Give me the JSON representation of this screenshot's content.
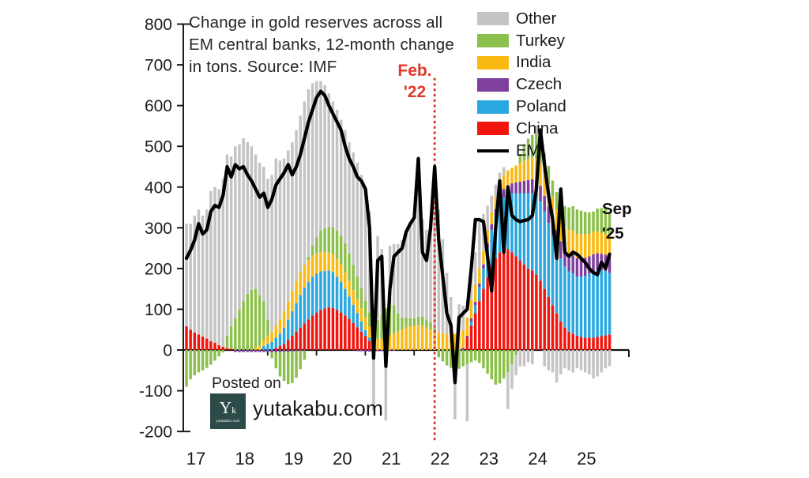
{
  "title": "Change in gold reserves across all EM central banks, 12-month change in tons. Source: IMF",
  "annotations": {
    "event_line1": "Feb.",
    "event_line2": "'22",
    "end_line1": "Sep",
    "end_line2": "'25"
  },
  "watermark": {
    "posted_on": "Posted on",
    "site": "yutakabu.com",
    "logo_monogram_large": "Y",
    "logo_monogram_small": "k",
    "logo_caption": "yutakabu.com"
  },
  "colors": {
    "china": "#f2150d",
    "poland": "#2aa7e0",
    "czech": "#7e3f9d",
    "india": "#fbba12",
    "turkey": "#8cc04c",
    "other": "#c4c4c4",
    "em_line": "#000000",
    "event_red": "#e0392d",
    "axis": "#1b1b1b",
    "logo_teal": "#2c4a47"
  },
  "chart_data": {
    "type": "bar",
    "subtype": "monthly stacked bars with EM total line overlay",
    "x_start": "2017-01",
    "x_end": "2025-09",
    "x_tick_labels": [
      "17",
      "18",
      "19",
      "20",
      "21",
      "22",
      "23",
      "24",
      "25"
    ],
    "ylim": [
      -200,
      800
    ],
    "ytick_step": 100,
    "grid": false,
    "legend_position": "top-right",
    "legend": [
      {
        "label": "Other",
        "color": "#c4c4c4",
        "swatch": "rect"
      },
      {
        "label": "Turkey",
        "color": "#8cc04c",
        "swatch": "rect"
      },
      {
        "label": "India",
        "color": "#fbba12",
        "swatch": "rect"
      },
      {
        "label": "Czech",
        "color": "#7e3f9d",
        "swatch": "rect"
      },
      {
        "label": "Poland",
        "color": "#2aa7e0",
        "swatch": "rect"
      },
      {
        "label": "China",
        "color": "#f2150d",
        "swatch": "rect"
      },
      {
        "label": "EM",
        "color": "#000000",
        "swatch": "line"
      }
    ],
    "event_line": {
      "label": "Feb. '22",
      "x_month_index": 61
    },
    "series": [
      {
        "name": "China",
        "color": "#f2150d",
        "values": [
          58,
          50,
          43,
          38,
          33,
          28,
          22,
          18,
          12,
          8,
          5,
          3,
          0,
          0,
          0,
          0,
          0,
          0,
          0,
          0,
          0,
          0,
          5,
          10,
          15,
          25,
          35,
          45,
          55,
          65,
          75,
          85,
          92,
          98,
          102,
          105,
          103,
          98,
          92,
          85,
          76,
          66,
          56,
          45,
          34,
          22,
          10,
          0,
          0,
          0,
          0,
          0,
          0,
          0,
          0,
          0,
          0,
          0,
          0,
          0,
          0,
          0,
          0,
          0,
          0,
          0,
          0,
          0,
          0,
          30,
          60,
          90,
          120,
          150,
          180,
          205,
          225,
          240,
          250,
          248,
          240,
          230,
          220,
          210,
          200,
          195,
          185,
          170,
          150,
          130,
          110,
          90,
          70,
          55,
          45,
          40,
          35,
          32,
          30,
          30,
          30,
          32,
          34,
          36,
          38
        ]
      },
      {
        "name": "Poland",
        "color": "#2aa7e0",
        "values": [
          0,
          0,
          0,
          0,
          0,
          0,
          0,
          0,
          0,
          0,
          0,
          0,
          0,
          0,
          0,
          0,
          0,
          0,
          0,
          10,
          15,
          20,
          25,
          30,
          40,
          50,
          60,
          70,
          80,
          88,
          92,
          95,
          95,
          95,
          92,
          90,
          88,
          82,
          75,
          65,
          55,
          45,
          35,
          25,
          15,
          8,
          0,
          0,
          0,
          0,
          0,
          0,
          0,
          0,
          0,
          0,
          0,
          0,
          0,
          0,
          0,
          0,
          0,
          0,
          0,
          0,
          0,
          0,
          0,
          0,
          10,
          20,
          35,
          50,
          70,
          90,
          105,
          115,
          125,
          135,
          145,
          155,
          165,
          175,
          185,
          190,
          195,
          195,
          190,
          182,
          172,
          162,
          155,
          150,
          148,
          148,
          145,
          148,
          152,
          158,
          163,
          165,
          162,
          158,
          152
        ]
      },
      {
        "name": "Czech",
        "color": "#7e3f9d",
        "values": [
          0,
          0,
          0,
          0,
          0,
          0,
          0,
          0,
          0,
          0,
          0,
          0,
          -5,
          -5,
          -5,
          -5,
          -5,
          -5,
          -5,
          -5,
          -5,
          -5,
          -5,
          -5,
          -4,
          -4,
          -3,
          -3,
          -2,
          -2,
          0,
          0,
          0,
          0,
          0,
          0,
          0,
          0,
          0,
          0,
          0,
          0,
          -3,
          -3,
          -4,
          -4,
          -4,
          -3,
          -3,
          -3,
          -2,
          -2,
          0,
          0,
          0,
          0,
          0,
          0,
          0,
          0,
          0,
          0,
          0,
          0,
          0,
          0,
          0,
          0,
          5,
          5,
          8,
          8,
          8,
          10,
          12,
          14,
          16,
          18,
          20,
          22,
          24,
          26,
          28,
          30,
          32,
          34,
          36,
          38,
          38,
          40,
          40,
          42,
          42,
          44,
          44,
          45,
          45,
          44,
          44,
          42,
          42,
          41,
          40,
          40,
          40
        ]
      },
      {
        "name": "India",
        "color": "#fbba12",
        "values": [
          0,
          0,
          0,
          0,
          0,
          0,
          0,
          0,
          0,
          0,
          0,
          0,
          0,
          0,
          0,
          0,
          0,
          5,
          10,
          15,
          20,
          25,
          30,
          35,
          40,
          45,
          50,
          54,
          56,
          56,
          54,
          52,
          50,
          48,
          46,
          45,
          44,
          43,
          42,
          40,
          38,
          36,
          34,
          32,
          30,
          28,
          27,
          26,
          28,
          32,
          36,
          40,
          45,
          50,
          55,
          58,
          60,
          62,
          60,
          55,
          50,
          46,
          44,
          42,
          40,
          40,
          40,
          42,
          44,
          45,
          44,
          42,
          38,
          34,
          32,
          30,
          30,
          32,
          34,
          36,
          38,
          42,
          46,
          50,
          52,
          54,
          55,
          56,
          56,
          55,
          54,
          52,
          52,
          54,
          58,
          60,
          60,
          60,
          58,
          56,
          55,
          54,
          52,
          51,
          50
        ]
      },
      {
        "name": "Turkey",
        "color": "#8cc04c",
        "values": [
          -90,
          -72,
          -62,
          -55,
          -50,
          -44,
          -36,
          -26,
          -16,
          -6,
          30,
          55,
          78,
          98,
          120,
          138,
          148,
          145,
          125,
          95,
          40,
          -15,
          -40,
          -60,
          -72,
          -80,
          -78,
          -65,
          -45,
          -22,
          8,
          25,
          40,
          52,
          58,
          62,
          66,
          70,
          72,
          72,
          68,
          62,
          56,
          50,
          42,
          34,
          40,
          48,
          60,
          70,
          90,
          70,
          45,
          30,
          25,
          20,
          18,
          20,
          22,
          20,
          18,
          10,
          -18,
          -28,
          -38,
          -44,
          -50,
          -46,
          -40,
          -35,
          -30,
          -26,
          -32,
          -45,
          -58,
          -72,
          -85,
          -82,
          -70,
          -55,
          -35,
          -12,
          22,
          40,
          50,
          55,
          60,
          56,
          50,
          45,
          40,
          42,
          46,
          50,
          55,
          60,
          60,
          58,
          55,
          52,
          50,
          55,
          60,
          62,
          60
        ]
      },
      {
        "name": "Other",
        "color": "#c4c4c4",
        "values": [
          252,
          260,
          287,
          307,
          297,
          317,
          368,
          382,
          383,
          412,
          445,
          417,
          422,
          407,
          400,
          372,
          352,
          330,
          325,
          330,
          345,
          385,
          410,
          390,
          375,
          370,
          365,
          371,
          384,
          401,
          411,
          398,
          383,
          367,
          352,
          328,
          309,
          297,
          284,
          278,
          273,
          276,
          279,
          278,
          269,
          248,
          -145,
          206,
          160,
          -170,
          130,
          150,
          170,
          190,
          210,
          230,
          240,
          380,
          240,
          220,
          230,
          390,
          300,
          230,
          150,
          90,
          -120,
          70,
          60,
          -140,
          60,
          80,
          120,
          90,
          60,
          40,
          30,
          30,
          20,
          -90,
          -60,
          -50,
          -40,
          -40,
          -30,
          -35,
          20,
          30,
          -40,
          -50,
          -55,
          -80,
          -60,
          -45,
          -50,
          -55,
          -45,
          -50,
          -55,
          -60,
          -70,
          -65,
          -55,
          -45,
          -40
        ]
      }
    ],
    "line": {
      "name": "EM",
      "color": "#000000",
      "values": [
        225,
        245,
        270,
        310,
        285,
        295,
        340,
        355,
        350,
        380,
        450,
        425,
        455,
        445,
        450,
        430,
        415,
        395,
        375,
        385,
        350,
        370,
        405,
        420,
        435,
        455,
        430,
        450,
        480,
        520,
        560,
        590,
        620,
        635,
        625,
        600,
        580,
        560,
        540,
        500,
        470,
        450,
        425,
        415,
        395,
        300,
        -20,
        220,
        230,
        -40,
        150,
        230,
        240,
        250,
        290,
        310,
        325,
        470,
        240,
        220,
        300,
        450,
        270,
        180,
        90,
        60,
        -80,
        80,
        90,
        100,
        200,
        320,
        320,
        315,
        230,
        145,
        300,
        415,
        240,
        400,
        330,
        320,
        315,
        318,
        320,
        330,
        395,
        540,
        455,
        380,
        320,
        225,
        395,
        240,
        230,
        240,
        235,
        225,
        215,
        200,
        190,
        185,
        215,
        200,
        235
      ]
    }
  }
}
